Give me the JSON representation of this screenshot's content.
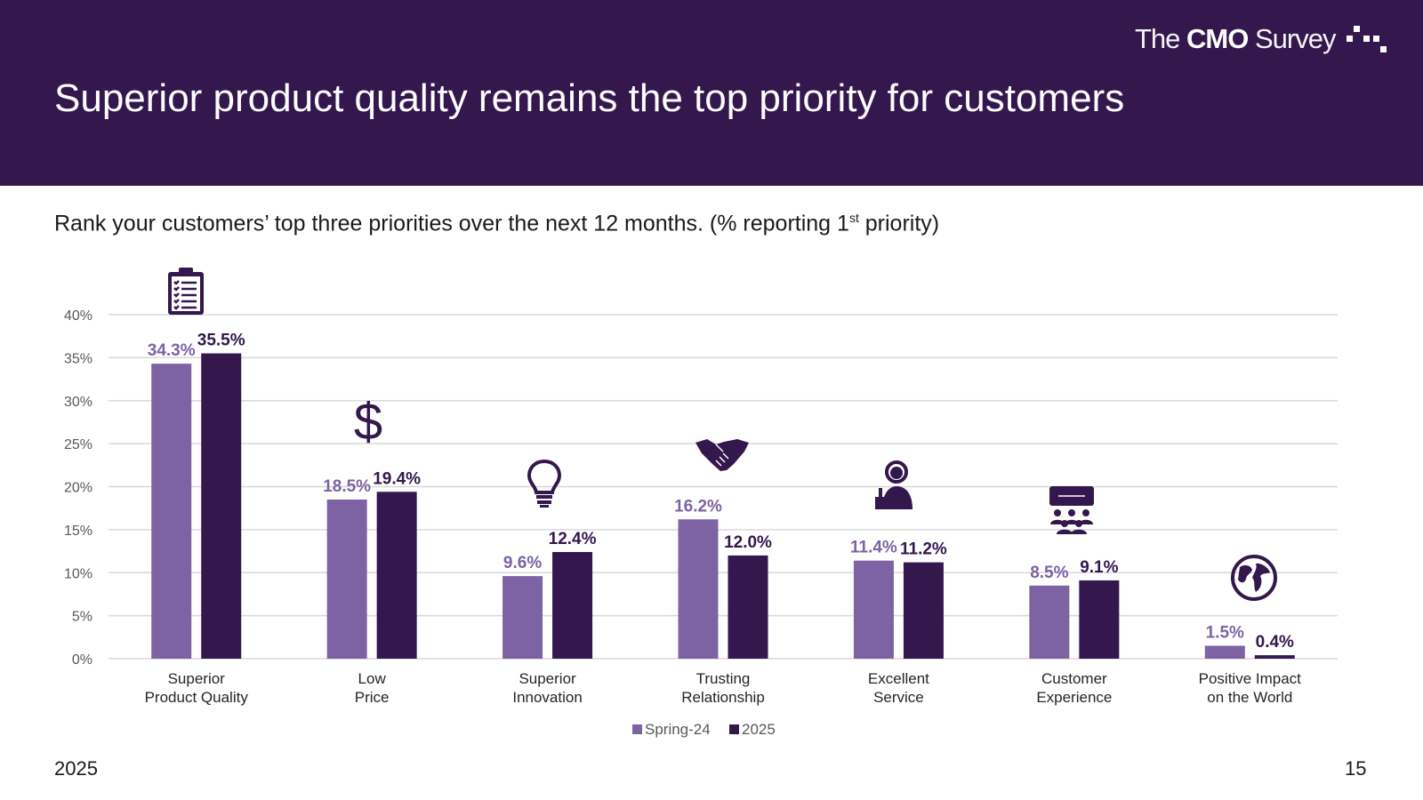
{
  "header": {
    "title": "Superior product quality remains the top priority for customers",
    "logo_the": "The ",
    "logo_cmo": "CMO",
    "logo_survey": " Survey"
  },
  "question": {
    "main": "Rank your customers’ top three priorities over the next 12 months. (% reporting 1",
    "sup": "st",
    "end": " priority)"
  },
  "footer": {
    "year": "2025",
    "page": "15"
  },
  "colors": {
    "header_bg": "#33174d",
    "spring24": "#7d63a3",
    "y2025": "#33174d",
    "grid": "#d9d9d9",
    "tick": "#595959"
  },
  "icons": [
    "clipboard-checklist-icon",
    "dollar-icon",
    "lightbulb-icon",
    "handshake-icon",
    "service-agent-icon",
    "audience-presentation-icon",
    "globe-icon"
  ],
  "chart_data": {
    "type": "bar",
    "categories": [
      [
        "Superior",
        "Product Quality"
      ],
      [
        "Low",
        "Price"
      ],
      [
        "Superior",
        "Innovation"
      ],
      [
        "Trusting",
        "Relationship"
      ],
      [
        "Excellent",
        "Service"
      ],
      [
        "Customer",
        "Experience"
      ],
      [
        "Positive Impact",
        "on the World"
      ]
    ],
    "series": [
      {
        "name": "Spring-24",
        "values": [
          34.3,
          18.5,
          9.6,
          16.2,
          11.4,
          8.5,
          1.5
        ],
        "labels": [
          "34.3%",
          "18.5%",
          "9.6%",
          "16.2%",
          "11.4%",
          "8.5%",
          "1.5%"
        ]
      },
      {
        "name": "2025",
        "values": [
          35.5,
          19.4,
          12.4,
          12.0,
          11.2,
          9.1,
          0.4
        ],
        "labels": [
          "35.5%",
          "19.4%",
          "12.4%",
          "12.0%",
          "11.2%",
          "9.1%",
          "0.4%"
        ]
      }
    ],
    "yticks": [
      "0%",
      "5%",
      "10%",
      "15%",
      "20%",
      "25%",
      "30%",
      "35%",
      "40%"
    ],
    "ylim": [
      0,
      40
    ],
    "legend_position": "bottom",
    "grid": true
  }
}
